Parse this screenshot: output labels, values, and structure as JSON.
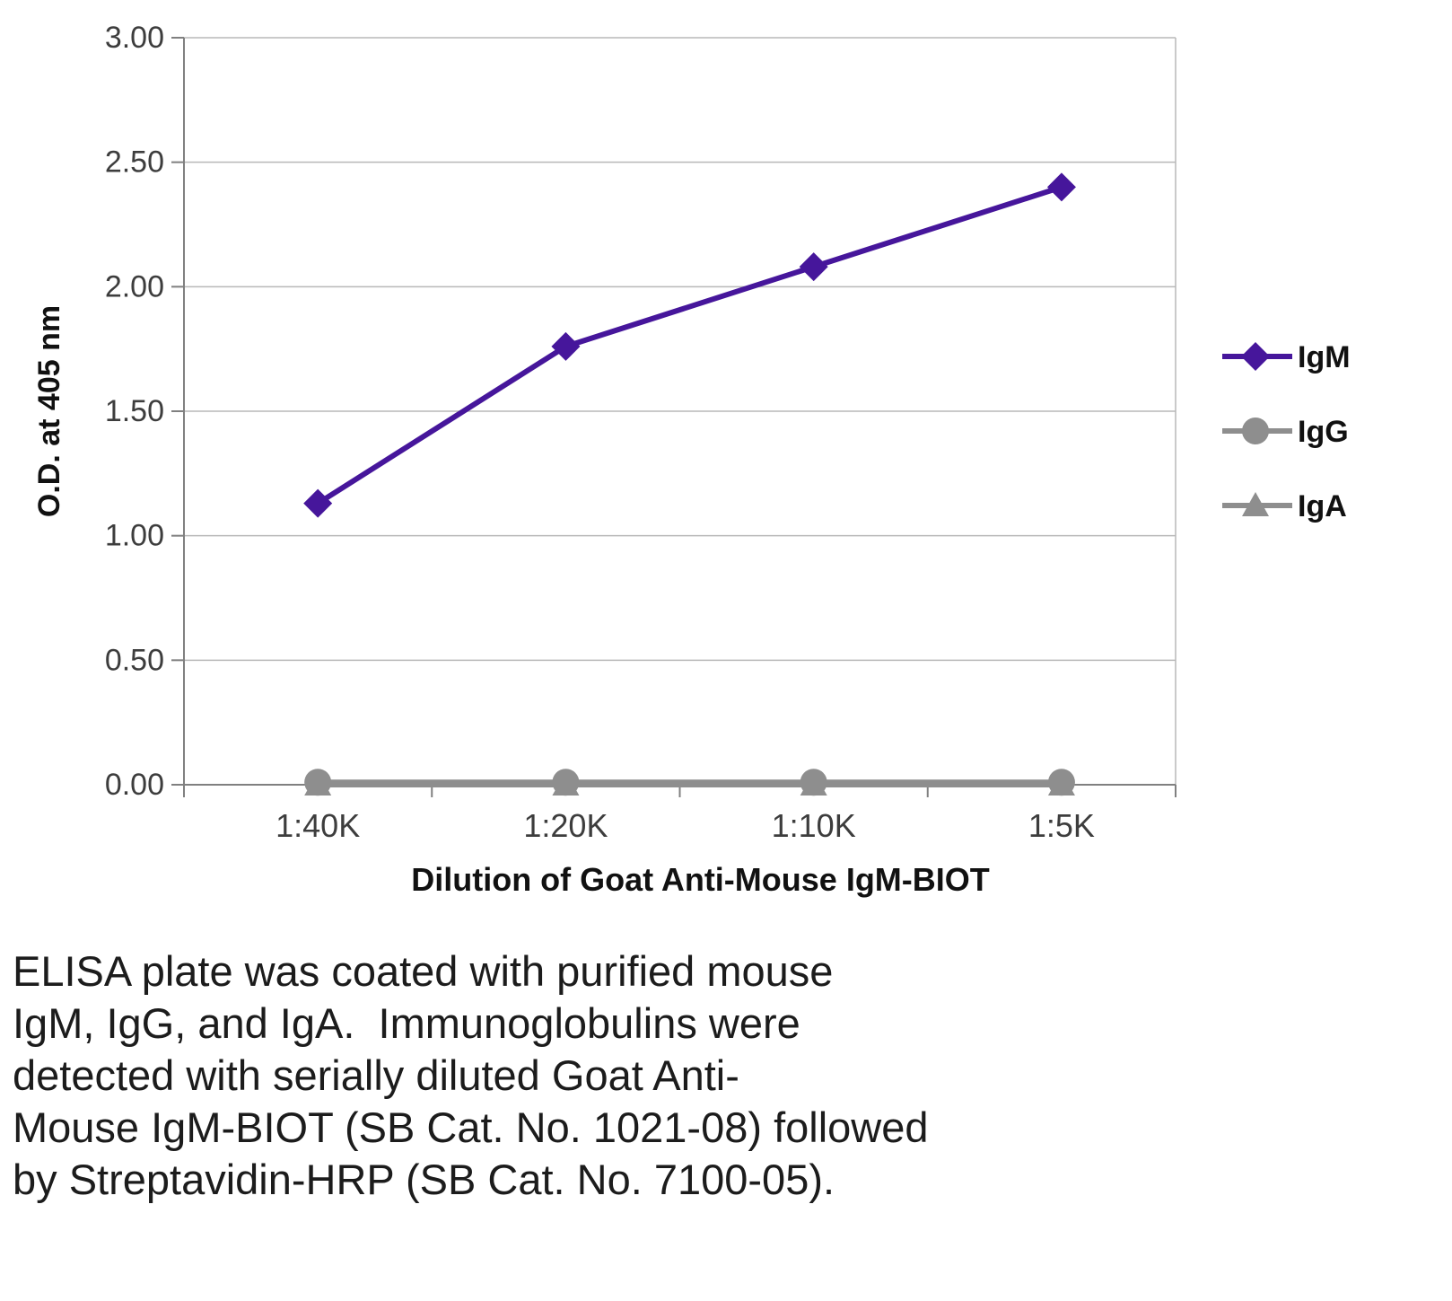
{
  "chart_data": {
    "type": "line",
    "title": "",
    "xlabel": "Dilution of Goat Anti-Mouse IgM-BIOT",
    "ylabel": "O.D. at 405 nm",
    "categories": [
      "1:40K",
      "1:20K",
      "1:10K",
      "1:5K"
    ],
    "series": [
      {
        "name": "IgM",
        "marker": "diamond",
        "color": "#46169b",
        "values": [
          1.13,
          1.76,
          2.08,
          2.4
        ]
      },
      {
        "name": "IgG",
        "marker": "circle",
        "color": "#8e8e8e",
        "values": [
          0.01,
          0.01,
          0.01,
          0.01
        ]
      },
      {
        "name": "IgA",
        "marker": "triangle",
        "color": "#8e8e8e",
        "values": [
          0.0,
          0.0,
          0.0,
          0.0
        ]
      }
    ],
    "ylim": [
      0,
      3.0
    ],
    "ytick_step": 0.5,
    "grid": true,
    "legend_position": "right",
    "grid_color": "#b8b8b8",
    "axis_color": "#808080",
    "tick_text_color": "#3d3d3d"
  },
  "caption": {
    "lines": [
      "ELISA plate was coated with purified mouse",
      "IgM, IgG, and IgA.  Immunoglobulins were",
      "detected with serially diluted Goat Anti-",
      "Mouse IgM-BIOT (SB Cat. No. 1021-08) followed",
      "by Streptavidin-HRP (SB Cat. No. 7100-05)."
    ]
  }
}
